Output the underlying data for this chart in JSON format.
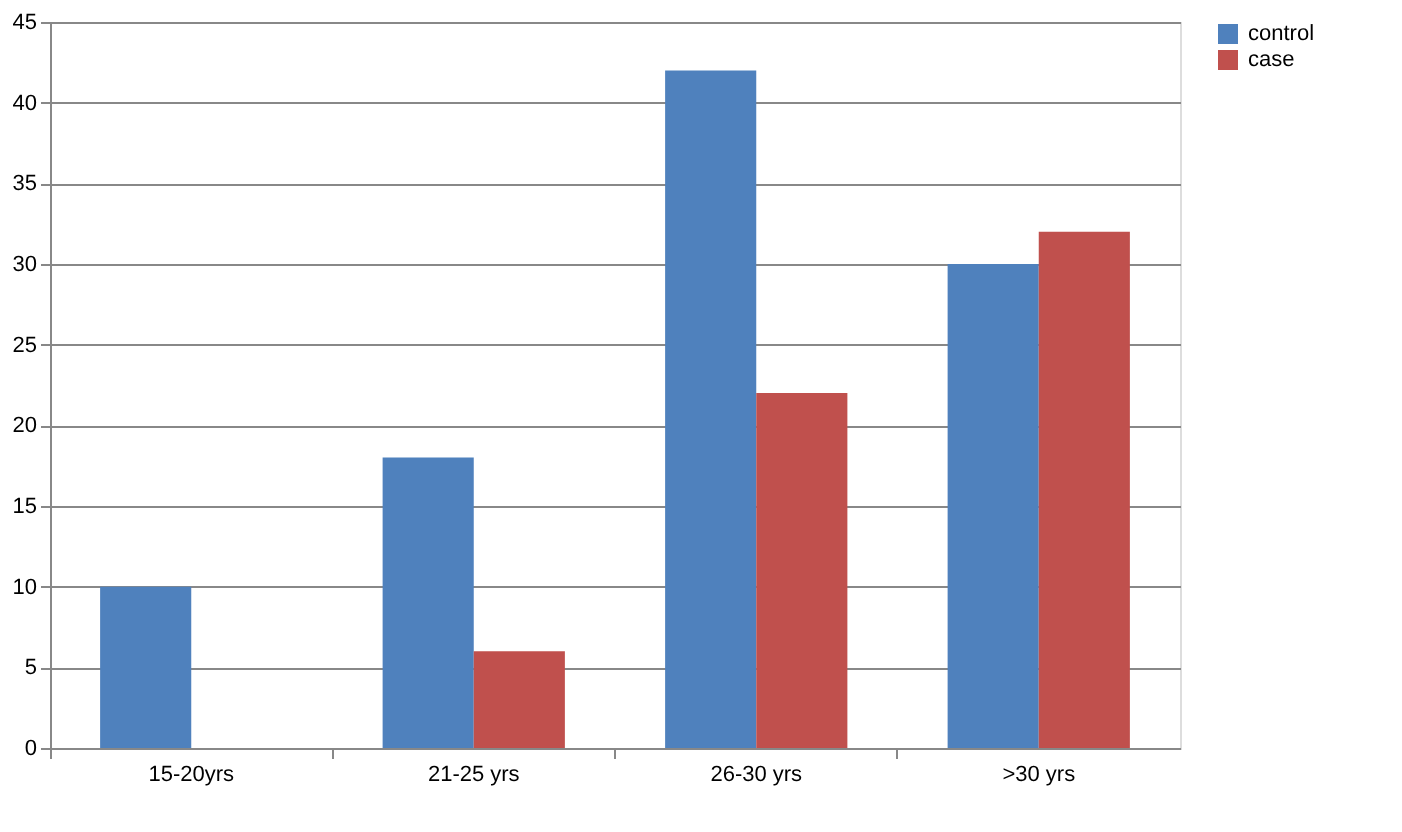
{
  "chart_data": {
    "type": "bar",
    "categories": [
      "15-20yrs",
      "21-25 yrs",
      "26-30 yrs",
      ">30 yrs"
    ],
    "series": [
      {
        "name": "control",
        "color": "#4f81bd",
        "values": [
          10,
          18,
          42,
          30
        ]
      },
      {
        "name": "case",
        "color": "#c0504d",
        "values": [
          0,
          6,
          22,
          32
        ]
      }
    ],
    "ylim": [
      0,
      45
    ],
    "yticks": [
      0,
      5,
      10,
      15,
      20,
      25,
      30,
      35,
      40,
      45
    ],
    "grid": "y",
    "legend": "right"
  }
}
